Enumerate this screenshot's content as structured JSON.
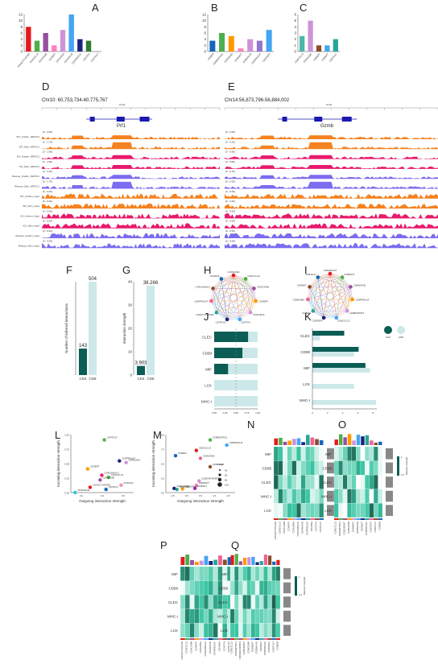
{
  "panels": {
    "A": {
      "label": "A",
      "chart_data": {
        "type": "bar",
        "categories": [
          "CD4ACTIVATED",
          "CD4CCL13",
          "CD4CXMB",
          "CD4EFF",
          "CD4LMNA",
          "CD4NAIVE",
          "CD4PROLIF",
          "CD4TFH",
          "CD4TH17"
        ],
        "values": [
          8,
          3.5,
          6,
          2,
          7,
          12,
          4,
          3.5,
          0
        ],
        "colors": [
          "#e41a1c",
          "#4daf4a",
          "#984ea3",
          "#ff7fbf",
          "#ce93d8",
          "#42a5f5",
          "#1a237e",
          "#2e7d32",
          "#8bc34a"
        ],
        "ylim": [
          0,
          12
        ],
        "yticks": [
          "0",
          "2",
          "4",
          "6",
          "8",
          "10",
          "12"
        ]
      }
    },
    "B": {
      "label": "B",
      "chart_data": {
        "type": "bar",
        "categories": [
          "CD8EM",
          "CD8EMTPD1",
          "CD8GRAN",
          "CD8MAIT",
          "CD8NAIVE",
          "CD8PROLIF",
          "CD8TEFF"
        ],
        "values": [
          3.5,
          6,
          5,
          1,
          4,
          3.5,
          7
        ],
        "colors": [
          "#1565c0",
          "#4caf50",
          "#ff9800",
          "#ff7fbf",
          "#ce93d8",
          "#9575cd",
          "#42a5f5"
        ],
        "ylim": [
          0,
          12
        ],
        "yticks": [
          "0",
          "2",
          "4",
          "6",
          "8",
          "10",
          "12"
        ]
      }
    },
    "C": {
      "label": "C",
      "chart_data": {
        "type": "bar",
        "categories": [
          "CD8CCL13",
          "CD8GZMK",
          "CD8EFF",
          "CD8NKT",
          "CD8TH17"
        ],
        "values": [
          2.5,
          5,
          1,
          1,
          2
        ],
        "colors": [
          "#4db6ac",
          "#ce93d8",
          "#8d4b2b",
          "#42a5f5",
          "#26a69a"
        ],
        "ylim": [
          0,
          6
        ],
        "yticks": [
          "0",
          "1",
          "2",
          "3",
          "4",
          "5",
          "6"
        ]
      }
    },
    "D": {
      "label": "D",
      "coord": "Chr10: 60,753,734-60,775,767",
      "gene": "Prf1",
      "scale": "10 kb",
      "tracks": [
        "WT_Unstim_NFATC1",
        "WT_Stim_NFATC1",
        "KO_Unstim_NFATC1",
        "KO_Stim_NFATC1",
        "Rescue_Unstim_NFATC1",
        "Rescue_Stim_NFATC1",
        "WT_Unstim_Input",
        "WT_Stim_Input",
        "KO_Unstim_Input",
        "KO_Stim_Input",
        "Rescue_Unstim_Input",
        "Rescue_Stim_Input"
      ],
      "ranges": [
        "[0 - 3.60]",
        "[0 - 1.70]",
        "[0 - 1.90]",
        "[0 - 1.80]",
        "[0 - 1.40]",
        "[0 - 1.70]",
        "[0 - 0.60]",
        "[0 - 0.60]",
        "[0 - 0.60]",
        "[0 - 0.60]",
        "[0 - 0.60]",
        "[0 - 0.60]"
      ]
    },
    "E": {
      "label": "E",
      "coord": "Chr14:56,873,796-56,884,002",
      "gene": "Gzmb",
      "scale": "10 kb",
      "ranges": [
        "[0 - 0.50]",
        "[0 - 0.60]",
        "[0 - 0.80]",
        "[0 - 0.80]",
        "[0 - 0.70]",
        "[0 - 0.60]",
        "[0 - 0.60]",
        "[0 - 0.60]",
        "[0 - 0.60]",
        "[0 - 0.60]",
        "[0 - 0.60]",
        "[0 - 0.60]"
      ]
    },
    "F": {
      "label": "F",
      "chart_data": {
        "type": "bar",
        "categories": [
          "CD4",
          "CD8"
        ],
        "values": [
          143,
          504
        ],
        "labels": [
          "143",
          "504"
        ],
        "ylabel": "Number of inferred interactions",
        "ylim": [
          0,
          504
        ]
      }
    },
    "G": {
      "label": "G",
      "chart_data": {
        "type": "bar",
        "categories": [
          "CD4",
          "CD8"
        ],
        "values": [
          3.903,
          38.266
        ],
        "labels": [
          "3.903",
          "38.266"
        ],
        "ylabel": "Interaction strength",
        "yticks": [
          "0",
          "10",
          "20",
          "30",
          "40"
        ],
        "ylim": [
          0,
          40
        ]
      }
    },
    "H": {
      "label": "H",
      "nodes": [
        "CD4NAIVE",
        "CD4CCL13",
        "CD4CXMB",
        "CD4EFF",
        "CD4LMNA",
        "CD4TFH",
        "CD4TH17",
        "CD4ACTIVATED",
        "CD4PROLIF",
        "CD4LMNALO",
        "CD4SNA"
      ]
    },
    "I": {
      "label": "I",
      "nodes": [
        "CD8GRANT",
        "CD8MAIT",
        "CD8NAIVE",
        "CD8PROLIF",
        "CD8EMTPD1",
        "CD8CCL13",
        "CD8TEFF",
        "CD8EM",
        "CD8GZMK",
        "CD8NKT",
        "CD8TH17"
      ]
    },
    "J": {
      "label": "J",
      "chart_data": {
        "type": "bar",
        "categories": [
          "CLEC",
          "CD99",
          "MIF",
          "LCK",
          "MHC-I"
        ],
        "cd4": [
          0.78,
          0.65,
          0.32,
          0,
          0
        ],
        "total": [
          1,
          1,
          1,
          1,
          1
        ],
        "xticks": [
          "0.00",
          "0.25",
          "0.50",
          "0.75",
          "1.00"
        ],
        "xlim": [
          0,
          1
        ]
      }
    },
    "K": {
      "label": "K",
      "chart_data": {
        "type": "bar",
        "categories": [
          "CLEC",
          "CD99",
          "MIF",
          "LCK",
          "MHC-I"
        ],
        "cd4": [
          4.2,
          6.1,
          7.0,
          0,
          0
        ],
        "cd8": [
          1.0,
          5.5,
          7.6,
          5.5,
          8.4
        ],
        "xticks": [
          "0",
          "2",
          "4",
          "6",
          "8"
        ],
        "xlim": [
          0,
          8.5
        ],
        "legend": [
          "CD4",
          "CD8"
        ]
      }
    },
    "L": {
      "label": "L",
      "chart_data": {
        "type": "scatter",
        "xlabel": "Outgoing interaction strength",
        "ylabel": "Incoming interaction strength",
        "xticks": [
          "0.2",
          "0.4",
          "0.6"
        ],
        "yticks": [
          "0.00",
          "0.25",
          "0.50",
          "0.75",
          "1.00"
        ],
        "points": [
          {
            "name": "CD4TH17",
            "x": 0.4,
            "y": 1.0,
            "c": "#4caf50"
          },
          {
            "name": "CD4PROLIF",
            "x": 0.58,
            "y": 0.6,
            "c": "#1a237e"
          },
          {
            "name": "CD4LMNA",
            "x": 0.66,
            "y": 0.57,
            "c": "#ce93d8"
          },
          {
            "name": "CD4EFF",
            "x": 0.2,
            "y": 0.45,
            "c": "#ff9800"
          },
          {
            "name": "CD4LMNALO",
            "x": 0.37,
            "y": 0.33,
            "c": "#e91e63"
          },
          {
            "name": "CD4CCL13",
            "x": 0.45,
            "y": 0.29,
            "c": "#4daf4a"
          },
          {
            "name": "CD4CXMB",
            "x": 0.35,
            "y": 0.24,
            "c": "#984ea3"
          },
          {
            "name": "CD4SNA",
            "x": 0.6,
            "y": 0.14,
            "c": "#f48fb1"
          },
          {
            "name": "CD4ACTIVATED",
            "x": 0.23,
            "y": 0.1,
            "c": "#e41a1c"
          },
          {
            "name": "CD4TFH",
            "x": 0.42,
            "y": 0.06,
            "c": "#1565c0"
          },
          {
            "name": "CD4NAIVE",
            "x": 0.05,
            "y": 0.0,
            "c": "#26c6da"
          }
        ]
      }
    },
    "M": {
      "label": "M",
      "chart_data": {
        "type": "scatter",
        "xlabel": "Outgoing interaction strength",
        "ylabel": "Incoming interaction strength",
        "xticks": [
          "2.5",
          "3.0",
          "3.5",
          "4.0",
          "4.5"
        ],
        "yticks": [
          "0.0",
          "2.5",
          "5.0",
          "7.5",
          "10.0"
        ],
        "legend_title": "Count",
        "legend_values": [
          "40",
          "60",
          "80",
          "100"
        ],
        "points": [
          {
            "name": "CD8EMTPD1",
            "x": 4.0,
            "y": 10.0,
            "c": "#4caf50"
          },
          {
            "name": "CD8PROLIF",
            "x": 4.6,
            "y": 9.0,
            "c": "#42a5f5"
          },
          {
            "name": "CD8CCL13",
            "x": 3.5,
            "y": 8.0,
            "c": "#e41a1c"
          },
          {
            "name": "CD8EM",
            "x": 2.75,
            "y": 7.0,
            "c": "#1565c0"
          },
          {
            "name": "CD8GZMK",
            "x": 3.65,
            "y": 6.5,
            "c": "#f06292"
          },
          {
            "name": "CD8TEFF",
            "x": 4.0,
            "y": 4.9,
            "c": "#8d4b2b"
          },
          {
            "name": "CD8GRANFBP2",
            "x": 3.6,
            "y": 2.2,
            "c": "#ce93d8"
          },
          {
            "name": "CD8MAIT",
            "x": 3.5,
            "y": 1.4,
            "c": "#ff7fbf"
          },
          {
            "name": "CD8NKT",
            "x": 3.45,
            "y": 0.8,
            "c": "#9c27b0"
          },
          {
            "name": "CD8NAIVE",
            "x": 2.7,
            "y": 0.8,
            "c": "#1a237e"
          },
          {
            "name": "CD8GRANT",
            "x": 3.0,
            "y": 0.7,
            "c": "#ff9800"
          },
          {
            "name": "CD8TH17",
            "x": 2.8,
            "y": 0.6,
            "c": "#26a69a"
          }
        ]
      }
    },
    "N": {
      "label": "N",
      "rows": [
        "MIF",
        "CD99",
        "CLEC",
        "MHC-I",
        "LCK"
      ],
      "cols": [
        "CD4ACTIVATED",
        "CD4CCL13",
        "CD4CXMB",
        "CD4EFF",
        "CD4LMNA",
        "CD4LMNALO",
        "CD4NAIVE",
        "CD4PROLIF",
        "CD4SNA",
        "CD4TFH",
        "CD4TH17"
      ]
    },
    "O": {
      "label": "O",
      "rows": [
        "MIF",
        "CD99",
        "CLEC",
        "MHC-I",
        "LCK"
      ],
      "cols": [
        "CD8CCL13",
        "CD8EMTPD1",
        "CD8GRANT",
        "CD8GZMK",
        "CD8MAIT",
        "CD8NAIVE",
        "CD8NKT",
        "CD8PROLIF",
        "CD8TEFF",
        "CD8TH17",
        "CD8EM"
      ],
      "legend_title": "Relative strength",
      "legend_max": "1",
      "legend_min": "0.1"
    },
    "P": {
      "label": "P",
      "rows": [
        "MIF",
        "CD99",
        "CLEC",
        "MHC-I",
        "LCK"
      ],
      "cols": [
        "CD4ACTIVATED",
        "CD4CCL13",
        "CD4CXMB",
        "CD4EFF",
        "CD4LMNA",
        "CD4LMNALO",
        "CD4NAIVE",
        "CD4PROLIF",
        "CD4SNA",
        "CD4TFH",
        "CD4TH17"
      ]
    },
    "Q": {
      "label": "Q",
      "rows": [
        "MIF",
        "CD99",
        "CLEC",
        "MHC-I",
        "LCK"
      ],
      "cols": [
        "CD8CCL13",
        "CD8EMTPD1",
        "CD8GRANFBP2",
        "CD8GRANT",
        "CD8GZMK",
        "CD8MAIT",
        "CD8NAIVE",
        "CD8NKT",
        "CD8PROLIF",
        "CD8TEFF",
        "CD8TH17",
        "CD8EM"
      ],
      "legend_title": "Relative strength",
      "legend_max": "1",
      "legend_min": "0.1"
    }
  },
  "colors": {
    "orange": "#f58220",
    "pink": "#e8196c",
    "purple": "#7b6cf0",
    "teal_dark": "#0b5d55",
    "teal_light": "#cde8e8"
  }
}
